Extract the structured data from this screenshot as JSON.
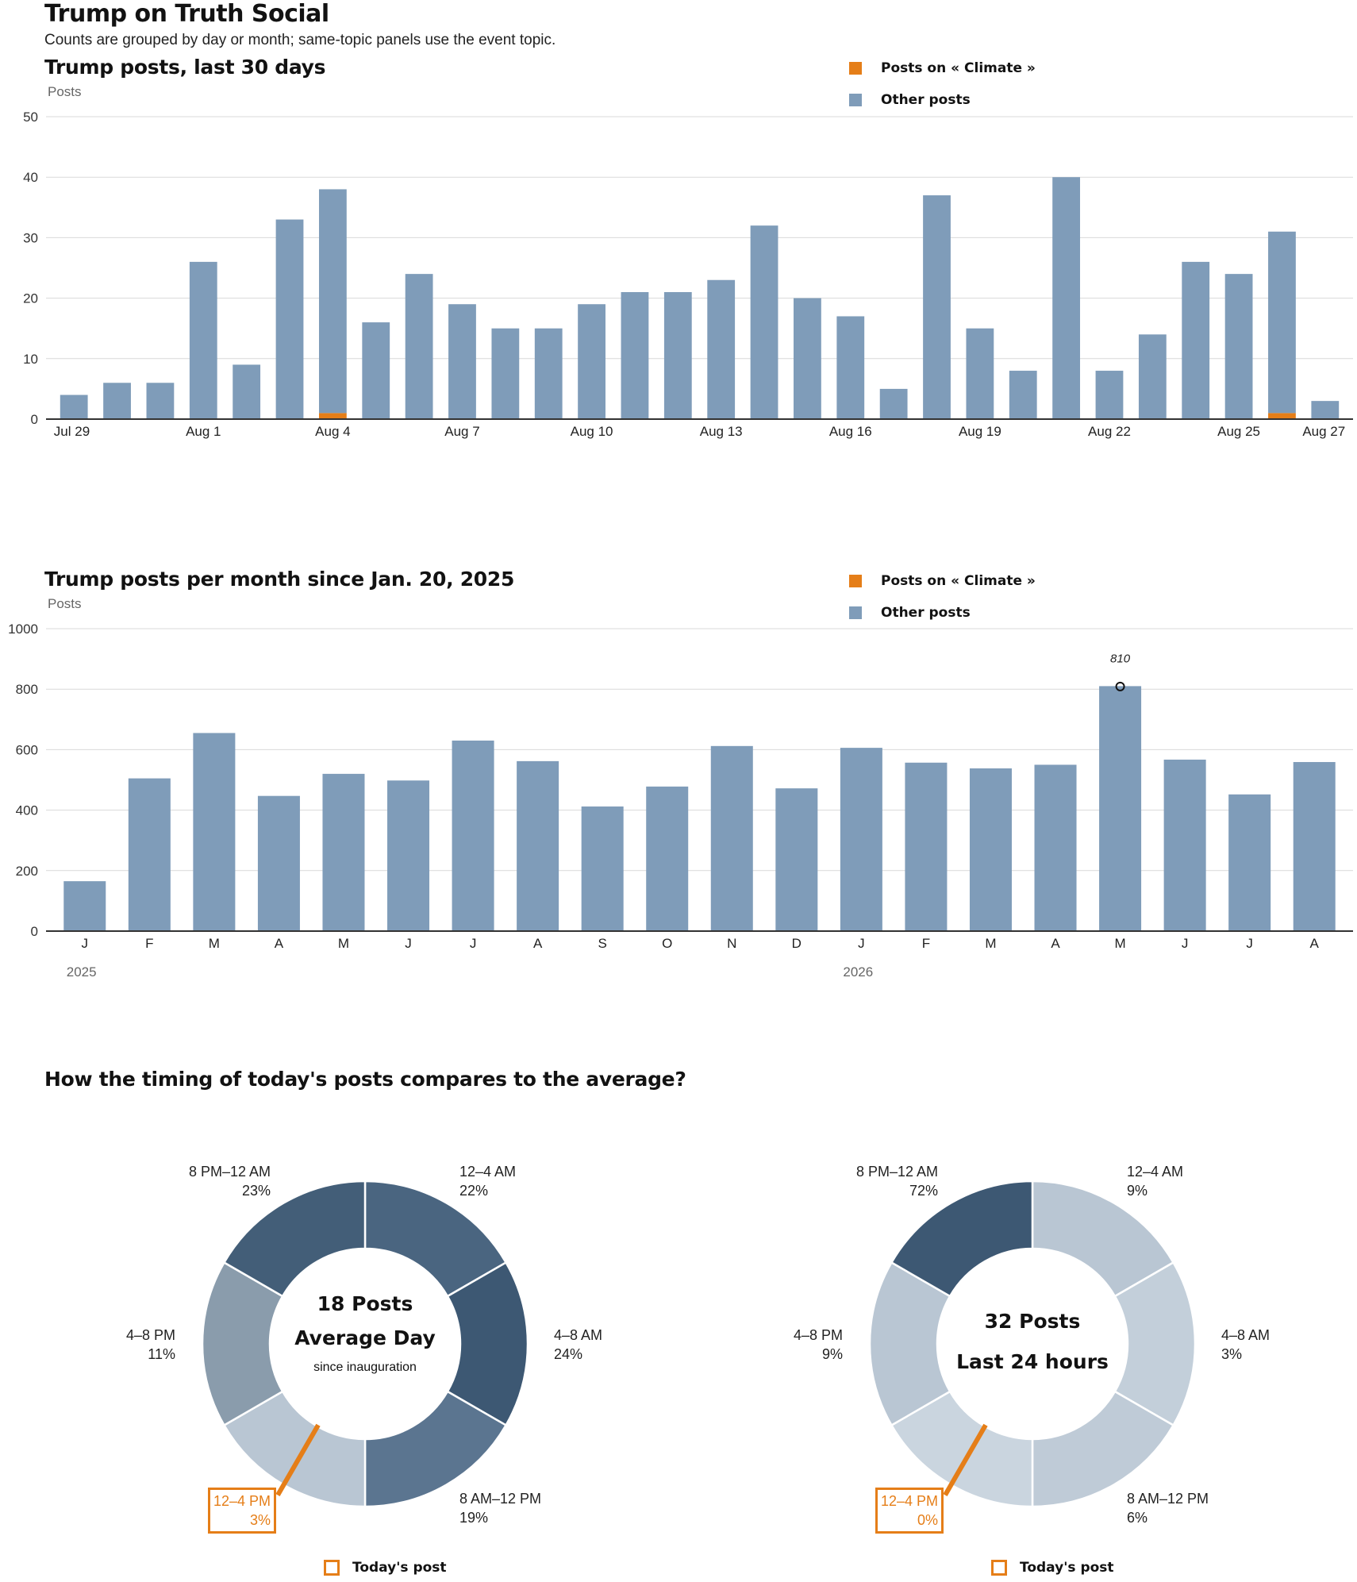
{
  "header": {
    "title": "Trump on Truth Social",
    "subtitle": "Counts are grouped by day or month; same-topic panels use the event topic."
  },
  "colors": {
    "topic": "#e57e18",
    "other": "#7f9cb9",
    "dark": "#3d5873"
  },
  "legend": {
    "topic_label": "Posts on « Climate »",
    "other_label": "Other posts"
  },
  "chart_data": [
    {
      "type": "bar",
      "stacked": true,
      "title": "Trump posts, last 30 days",
      "ylabel": "Posts",
      "ylim": [
        0,
        50
      ],
      "yticks": [
        "0",
        "10",
        "20",
        "30",
        "40",
        "50"
      ],
      "categories": [
        "Jul 29",
        "Jul 30",
        "Jul 31",
        "Aug 1",
        "Aug 2",
        "Aug 3",
        "Aug 4",
        "Aug 5",
        "Aug 6",
        "Aug 7",
        "Aug 8",
        "Aug 9",
        "Aug 10",
        "Aug 11",
        "Aug 12",
        "Aug 13",
        "Aug 14",
        "Aug 15",
        "Aug 16",
        "Aug 17",
        "Aug 18",
        "Aug 19",
        "Aug 20",
        "Aug 21",
        "Aug 22",
        "Aug 23",
        "Aug 24",
        "Aug 25",
        "Aug 26",
        "Aug 27"
      ],
      "xtick_labels": [
        "Jul 29",
        "",
        "",
        "Aug 1",
        "",
        "",
        "Aug 4",
        "",
        "",
        "Aug 7",
        "",
        "",
        "Aug 10",
        "",
        "",
        "Aug 13",
        "",
        "",
        "Aug 16",
        "",
        "",
        "Aug 19",
        "",
        "",
        "Aug 22",
        "",
        "",
        "Aug 25",
        "",
        "Aug 27"
      ],
      "series": [
        {
          "name": "Posts on « Climate »",
          "values": [
            0,
            0,
            0,
            0,
            0,
            0,
            1,
            0,
            0,
            0,
            0,
            0,
            0,
            0,
            0,
            0,
            0,
            0,
            0,
            0,
            0,
            0,
            0,
            0,
            0,
            0,
            0,
            0,
            1,
            0
          ]
        },
        {
          "name": "Other posts",
          "values": [
            4,
            6,
            6,
            26,
            9,
            33,
            37,
            16,
            24,
            19,
            15,
            15,
            19,
            21,
            21,
            23,
            32,
            20,
            17,
            5,
            37,
            15,
            8,
            40,
            8,
            14,
            26,
            24,
            30,
            3
          ]
        }
      ],
      "legend_position": "top-right",
      "grid": true
    },
    {
      "type": "bar",
      "stacked": true,
      "title": "Trump posts per month since Jan. 20, 2025",
      "ylabel": "Posts",
      "ylim": [
        0,
        1000
      ],
      "yticks": [
        "0",
        "200",
        "400",
        "600",
        "800",
        "1000"
      ],
      "categories": [
        "J",
        "F",
        "M",
        "A",
        "M",
        "J",
        "J",
        "A",
        "S",
        "O",
        "N",
        "D",
        "J",
        "F",
        "M",
        "A",
        "M",
        "J",
        "J",
        "A"
      ],
      "years": [
        {
          "label": "2025",
          "index": 0
        },
        {
          "label": "2026",
          "index": 12
        }
      ],
      "series": [
        {
          "name": "Posts on « Climate »",
          "values": [
            0,
            0,
            0,
            0,
            0,
            0,
            0,
            0,
            0,
            0,
            0,
            0,
            0,
            0,
            2,
            0,
            0,
            0,
            0,
            0
          ]
        },
        {
          "name": "Other posts",
          "values": [
            165,
            505,
            655,
            447,
            520,
            498,
            630,
            562,
            412,
            478,
            612,
            472,
            606,
            557,
            536,
            550,
            810,
            567,
            452,
            559
          ]
        }
      ],
      "annotation": {
        "index": 16,
        "label": "810"
      },
      "legend_position": "top-right",
      "grid": true
    },
    {
      "type": "pie",
      "donut": true,
      "center_big": "18 Posts",
      "center_title": "Average Day",
      "center_sub": "since inauguration",
      "slices": [
        {
          "label": "12–4 AM",
          "value": 22,
          "pct": "22%",
          "color": "#4a6580"
        },
        {
          "label": "4–8 AM",
          "value": 24,
          "pct": "24%",
          "color": "#3d5873"
        },
        {
          "label": "8 AM–12 PM",
          "value": 19,
          "pct": "19%",
          "color": "#5b7590"
        },
        {
          "label": "12–4 PM",
          "value": 3,
          "pct": "3%",
          "color": "#b9c6d3",
          "highlight": true
        },
        {
          "label": "4–8 PM",
          "value": 11,
          "pct": "11%",
          "color": "#8a9cac"
        },
        {
          "label": "8 PM–12 AM",
          "value": 23,
          "pct": "23%",
          "color": "#435e78"
        }
      ]
    },
    {
      "type": "pie",
      "donut": true,
      "center_big": "32 Posts",
      "center_title": "Last 24 hours",
      "center_sub": "",
      "slices": [
        {
          "label": "12–4 AM",
          "value": 9,
          "pct": "9%",
          "color": "#b9c6d3"
        },
        {
          "label": "4–8 AM",
          "value": 3,
          "pct": "3%",
          "color": "#c3cfda"
        },
        {
          "label": "8 AM–12 PM",
          "value": 6,
          "pct": "6%",
          "color": "#bfcbd7"
        },
        {
          "label": "12–4 PM",
          "value": 0,
          "pct": "0%",
          "color": "#cad5df",
          "highlight": true
        },
        {
          "label": "4–8 PM",
          "value": 9,
          "pct": "9%",
          "color": "#b9c6d3"
        },
        {
          "label": "8 PM–12 AM",
          "value": 72,
          "pct": "72%",
          "color": "#3d5873"
        }
      ]
    }
  ],
  "timing": {
    "title": "How the timing of today's posts compares to the average?",
    "today_legend": "Today's post"
  }
}
